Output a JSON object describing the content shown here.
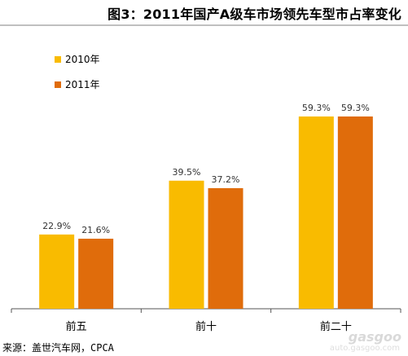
{
  "title": "图3：2011年国产A级车市场领先车型市占率变化",
  "source": "来源：盖世汽车网，CPCA",
  "watermark": {
    "main": "gasgoo",
    "sub": "auto.gasgoo.com"
  },
  "colors": {
    "series_2010": "#f9bb00",
    "series_2011": "#e06c0b",
    "axis": "#555555",
    "label": "#333333"
  },
  "chart_data": {
    "type": "bar",
    "title": "图3：2011年国产A级车市场领先车型市占率变化",
    "xlabel": "",
    "ylabel": "",
    "categories": [
      "前五",
      "前十",
      "前二十"
    ],
    "series": [
      {
        "name": "2010年",
        "values": [
          22.9,
          39.5,
          59.3
        ],
        "labels": [
          "22.9%",
          "39.5%",
          "59.3%"
        ]
      },
      {
        "name": "2011年",
        "values": [
          21.6,
          37.2,
          59.3
        ],
        "labels": [
          "21.6%",
          "37.2%",
          "59.3%"
        ]
      }
    ],
    "ylim": [
      0,
      74
    ],
    "grid": false,
    "legend": "top-left"
  }
}
